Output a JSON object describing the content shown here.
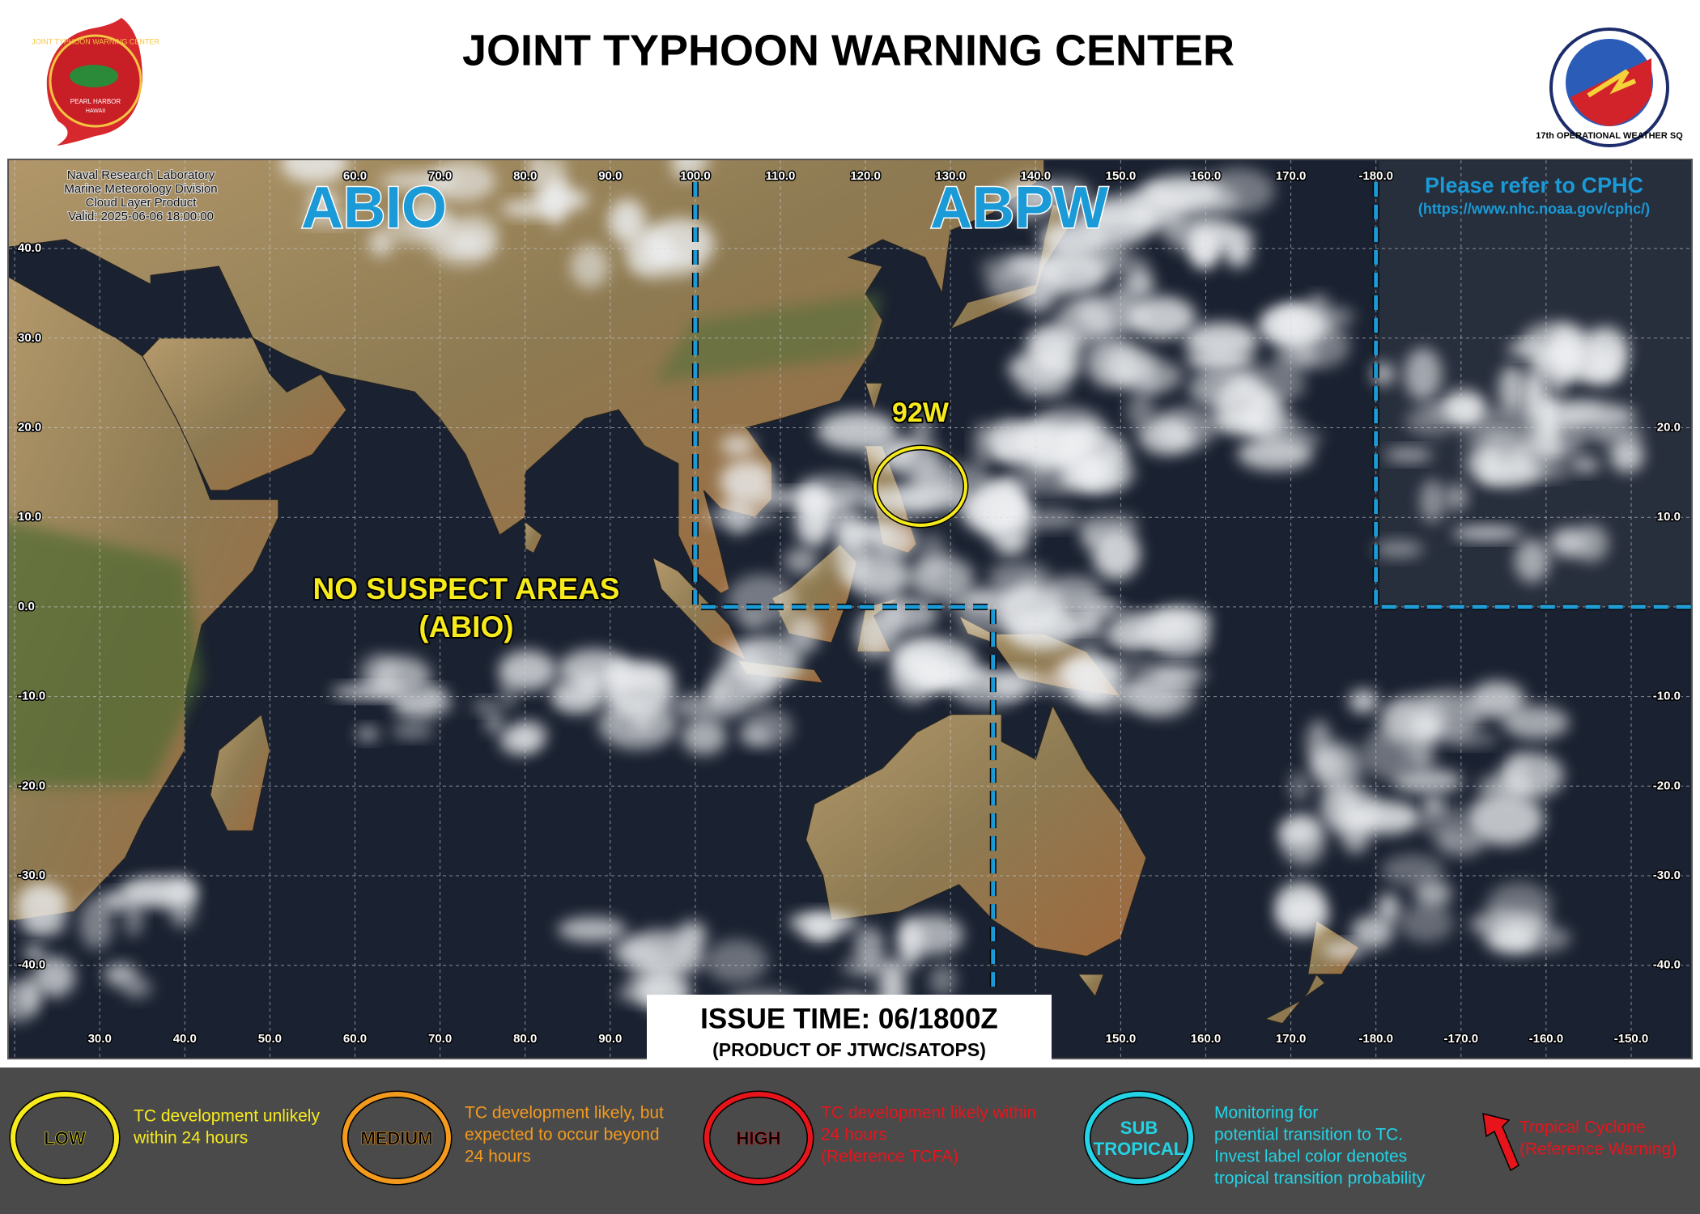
{
  "header": {
    "title": "JOINT TYPHOON WARNING CENTER",
    "left_logo": {
      "ring": "JOINT TYPHOON WARNING CENTER",
      "line1": "PEARL HARBOR",
      "line2": "HAWAII"
    },
    "right_logo": {
      "ring": "17th OPERATIONAL WEATHER SQ"
    }
  },
  "map": {
    "source_note": [
      "Naval Research Laboratory",
      "Marine Meteorology Division",
      "Cloud Layer Product",
      "Valid: 2025-06-06 18:00:00"
    ],
    "regions": [
      {
        "label": "ABIO"
      },
      {
        "label": "ABPW"
      }
    ],
    "cphc": {
      "label": "Please refer to CPHC",
      "url": "(https://www.nhc.noaa.gov/cphc/)"
    },
    "invest": {
      "label": "92W"
    },
    "no_suspect": [
      "NO SUSPECT AREAS",
      "(ABIO)"
    ],
    "top_lon_labels": [
      "60.0",
      "70.0",
      "80.0",
      "90.0",
      "100.0",
      "110.0",
      "120.0",
      "130.0",
      "140.0",
      "150.0",
      "160.0",
      "170.0",
      "-180.0"
    ],
    "bottom_lon_labels_west": [
      "30.0",
      "40.0",
      "50.0",
      "60.0",
      "70.0",
      "80.0",
      "90.0"
    ],
    "bottom_lon_labels_east": [
      "150.0",
      "160.0",
      "170.0",
      "-180.0",
      "-170.0",
      "-160.0",
      "-150.0"
    ],
    "left_lat_labels": [
      "40.0",
      "30.0",
      "20.0",
      "10.0",
      "0.0",
      "-10.0",
      "-20.0",
      "-30.0",
      "-40.0"
    ],
    "right_lat_labels": [
      "20.0",
      "10.0",
      "-10.0",
      "-20.0",
      "-30.0",
      "-40.0"
    ]
  },
  "issue": {
    "time": "ISSUE TIME: 06/1800Z",
    "product": "(PRODUCT OF JTWC/SATOPS)"
  },
  "legend": [
    {
      "badge": [
        "LOW"
      ],
      "text": [
        "TC development  unlikely",
        "within 24 hours"
      ]
    },
    {
      "badge": [
        "MEDIUM"
      ],
      "text": [
        "TC development likely, but",
        "expected to occur beyond",
        "24 hours"
      ]
    },
    {
      "badge": [
        "HIGH"
      ],
      "text": [
        "TC development likely within",
        "24 hours",
        "(Reference TCFA)"
      ]
    },
    {
      "badge": [
        "SUB",
        "TROPICAL"
      ],
      "text": [
        "Monitoring  for",
        "potential  transition to TC.",
        "Invest label color denotes",
        "tropical transition probability"
      ]
    },
    {
      "badge": [],
      "text": [
        "Tropical Cyclone",
        "(Reference Warning)"
      ]
    }
  ]
}
